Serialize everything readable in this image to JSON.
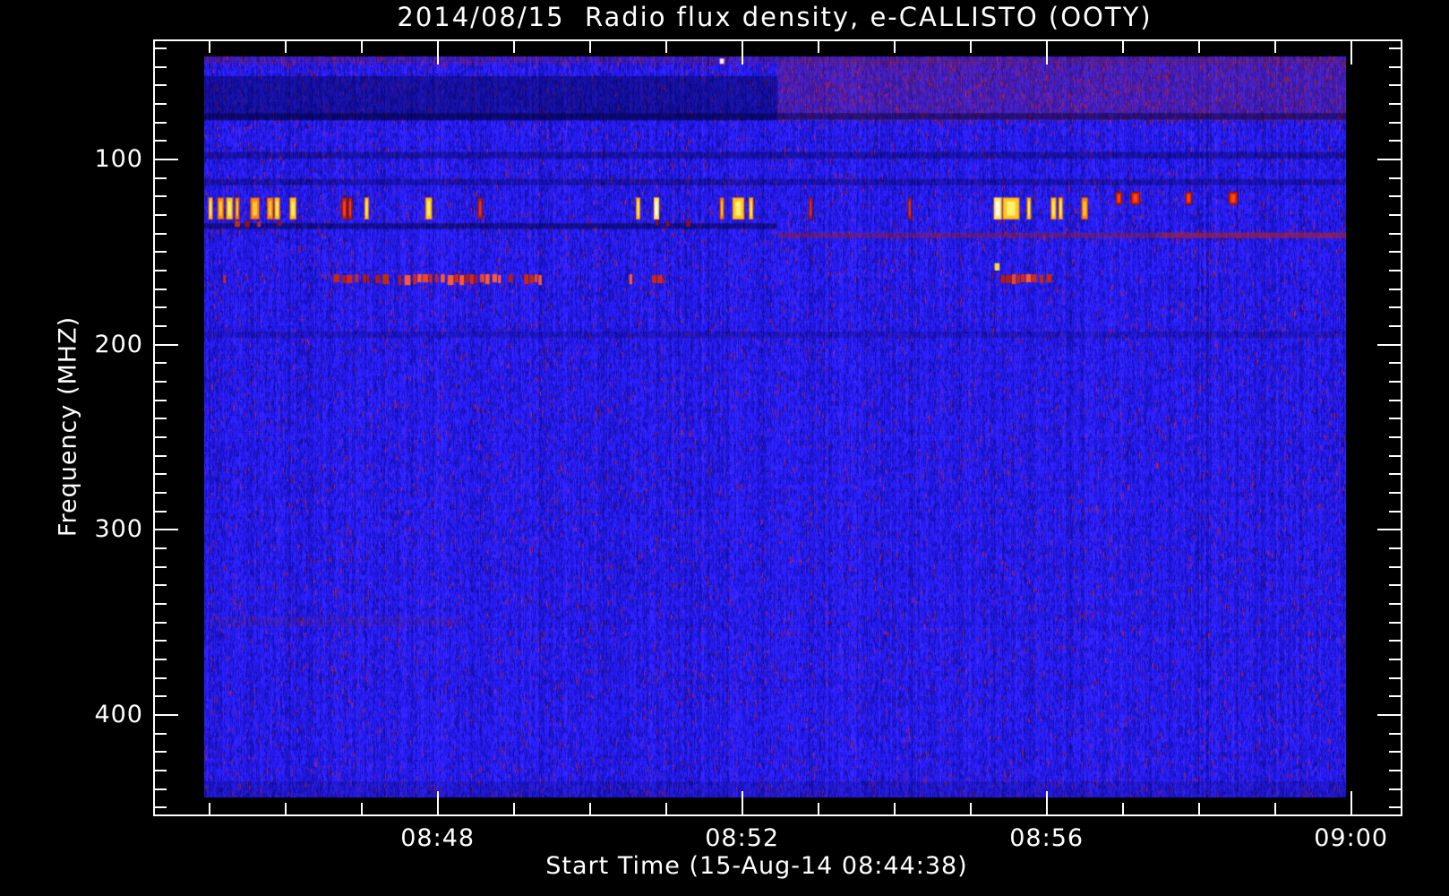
{
  "window": {
    "bg": "#000000",
    "fg": "#ffffff"
  },
  "chart_data": {
    "type": "heatmap",
    "title": "2014/08/15  Radio flux density, e-CALLISTO (OOTY)",
    "xlabel": "Start Time (15-Aug-14 08:44:38)",
    "ylabel": "Frequency (MHZ)",
    "legend": "none",
    "grid": "off",
    "x_axis": {
      "ticks_major": [
        "08:48",
        "08:52",
        "08:56",
        "09:00"
      ],
      "minor_step_minutes": 1,
      "minor_first_minute": 45,
      "minor_last_minute": 59,
      "data_start": "08:44:56",
      "data_end": "08:59:56"
    },
    "y_axis": {
      "ticks_major": [
        100,
        200,
        300,
        400
      ],
      "minor_step": 10,
      "minor_first": 40,
      "minor_last": 450,
      "data_min_mhz": 44.4,
      "data_max_mhz": 444.4,
      "direction": "increasing-downward"
    },
    "palette": {
      "base_blue": "#2420e6",
      "dark_blue": "#0b0a8e",
      "light_blue": "#4a46ff",
      "maroon_speckle": "#8c1e32",
      "burst_red": "#d42005",
      "burst_orange": "#ff8712",
      "burst_yellow": "#ffe34a",
      "burst_white": "#ffffff"
    },
    "bands": [
      {
        "name": "dark-band-upper-left",
        "f_mhz": [
          55,
          79
        ],
        "from": "08:44:56",
        "to": "08:52:28",
        "color": "#000040",
        "alpha": 0.42
      },
      {
        "name": "red-band-upper-right",
        "f_mhz": [
          45.5,
          79
        ],
        "from": "08:52:28",
        "to": "08:59:56",
        "color": "#96283c",
        "alpha": 0.26
      },
      {
        "name": "dark-row-76mhz",
        "f_mhz": [
          75,
          78.5
        ],
        "from": "08:44:56",
        "to": "08:59:56",
        "color": "#000030",
        "alpha": 0.45
      },
      {
        "name": "red-speckle-top-row",
        "f_mhz": [
          44.4,
          48.5
        ],
        "from": "08:44:56",
        "to": "08:59:56",
        "color": "#82202c",
        "alpha": 0.2
      },
      {
        "name": "dark-line-97mhz",
        "f_mhz": [
          96,
          99.5
        ],
        "from": "08:44:56",
        "to": "08:59:56",
        "color": "#000032",
        "alpha": 0.35
      },
      {
        "name": "dark-line-112mhz",
        "f_mhz": [
          110.5,
          114
        ],
        "from": "08:44:56",
        "to": "08:59:56",
        "color": "#000032",
        "alpha": 0.3
      },
      {
        "name": "dark-lane-136mhz-left",
        "f_mhz": [
          134.5,
          137.5
        ],
        "from": "08:44:56",
        "to": "08:52:28",
        "color": "#00002c",
        "alpha": 0.48
      },
      {
        "name": "red-line-141mhz-right",
        "f_mhz": [
          139.5,
          142.5
        ],
        "from": "08:52:28",
        "to": "08:59:56",
        "color": "#a02020",
        "alpha": 0.42
      },
      {
        "name": "red-line-141mhz-tail",
        "f_mhz": [
          139.5,
          142.5
        ],
        "from": "08:57:30",
        "to": "08:59:56",
        "color": "#c02424",
        "alpha": 0.35
      },
      {
        "name": "dark-line-195mhz",
        "f_mhz": [
          193,
          196.5
        ],
        "from": "08:44:56",
        "to": "08:59:56",
        "color": "#000032",
        "alpha": 0.2
      },
      {
        "name": "faint-red-350mhz",
        "f_mhz": [
          347,
          352
        ],
        "from": "08:45:00",
        "to": "08:48:20",
        "color": "#8c2830",
        "alpha": 0.14
      },
      {
        "name": "bottom-dim-edge",
        "f_mhz": [
          436,
          444.4
        ],
        "from": "08:44:56",
        "to": "08:59:56",
        "color": "#000020",
        "alpha": 0.15
      }
    ],
    "burst_line": {
      "f_mhz_default": [
        121,
        132
      ],
      "bursts": [
        {
          "t": "08:45:00",
          "dur_s": 2,
          "color": "yellow"
        },
        {
          "t": "08:45:07",
          "dur_s": 4,
          "color": "orange"
        },
        {
          "t": "08:45:14",
          "dur_s": 4,
          "color": "yellow"
        },
        {
          "t": "08:45:21",
          "dur_s": 2,
          "color": "orange"
        },
        {
          "t": "08:45:33",
          "dur_s": 6,
          "color": "orange"
        },
        {
          "t": "08:45:46",
          "dur_s": 4,
          "color": "orange"
        },
        {
          "t": "08:45:52",
          "dur_s": 3,
          "color": "yellow"
        },
        {
          "t": "08:46:04",
          "dur_s": 4,
          "color": "yellow"
        },
        {
          "t": "08:46:45",
          "dur_s": 3,
          "color": "red"
        },
        {
          "t": "08:46:50",
          "dur_s": 2,
          "color": "red"
        },
        {
          "t": "08:47:03",
          "dur_s": 2,
          "color": "yellow"
        },
        {
          "t": "08:47:51",
          "dur_s": 4,
          "color": "yellow"
        },
        {
          "t": "08:48:32",
          "dur_s": 3,
          "color": "red",
          "faint": true
        },
        {
          "t": "08:50:37",
          "dur_s": 2,
          "color": "yellow"
        },
        {
          "t": "08:50:51",
          "dur_s": 3,
          "color": "white"
        },
        {
          "t": "08:51:43",
          "dur_s": 2,
          "color": "orange"
        },
        {
          "t": "08:51:53",
          "dur_s": 8,
          "color": "yellow"
        },
        {
          "t": "08:52:06",
          "dur_s": 2,
          "color": "yellow"
        },
        {
          "t": "08:52:53",
          "dur_s": 2,
          "color": "red",
          "faint": true
        },
        {
          "t": "08:54:11",
          "dur_s": 2,
          "color": "red",
          "faint": true
        },
        {
          "t": "08:55:19",
          "dur_s": 5,
          "color": "white"
        },
        {
          "t": "08:55:26",
          "dur_s": 12,
          "color": "yellow"
        },
        {
          "t": "08:55:45",
          "dur_s": 2,
          "color": "yellow"
        },
        {
          "t": "08:56:04",
          "dur_s": 3,
          "color": "yellow"
        },
        {
          "t": "08:56:10",
          "dur_s": 2,
          "color": "yellow"
        },
        {
          "t": "08:56:28",
          "dur_s": 4,
          "color": "orange"
        },
        {
          "t": "08:56:55",
          "dur_s": 4,
          "color": "red",
          "f_mhz": [
            118,
            124
          ]
        },
        {
          "t": "08:57:07",
          "dur_s": 6,
          "color": "red",
          "f_mhz": [
            118,
            124
          ]
        },
        {
          "t": "08:57:50",
          "dur_s": 4,
          "color": "red",
          "f_mhz": [
            118,
            124
          ]
        },
        {
          "t": "08:58:24",
          "dur_s": 6,
          "color": "red",
          "f_mhz": [
            118,
            124
          ]
        }
      ]
    },
    "dashed_rfi_line": {
      "f_mhz": [
        162,
        166.4
      ],
      "color": "#d8280a",
      "segments": [
        {
          "t": "08:45:11",
          "dur_s": 2
        },
        {
          "t": "08:46:38",
          "dur_s": 20
        },
        {
          "t": "08:47:01",
          "dur_s": 5
        },
        {
          "t": "08:47:11",
          "dur_s": 11
        },
        {
          "t": "08:47:29",
          "dur_s": 3
        },
        {
          "t": "08:47:34",
          "dur_s": 76
        },
        {
          "t": "08:48:56",
          "dur_s": 4
        },
        {
          "t": "08:49:08",
          "dur_s": 14
        },
        {
          "t": "08:50:31",
          "dur_s": 4
        },
        {
          "t": "08:50:49",
          "dur_s": 11
        },
        {
          "t": "08:55:24",
          "dur_s": 40
        }
      ],
      "yellow_mark": {
        "t": "08:55:19",
        "dur_s": 4,
        "f_mhz": [
          156,
          160
        ]
      }
    },
    "sub_speckles": {
      "f_mhz": [
        132,
        136
      ],
      "times": [
        "08:45:20",
        "08:45:28",
        "08:45:38",
        "08:45:54",
        "08:50:52",
        "08:51:00",
        "08:51:16"
      ]
    },
    "white_speck": {
      "t": "08:51:43",
      "f_mhz": 46
    }
  }
}
